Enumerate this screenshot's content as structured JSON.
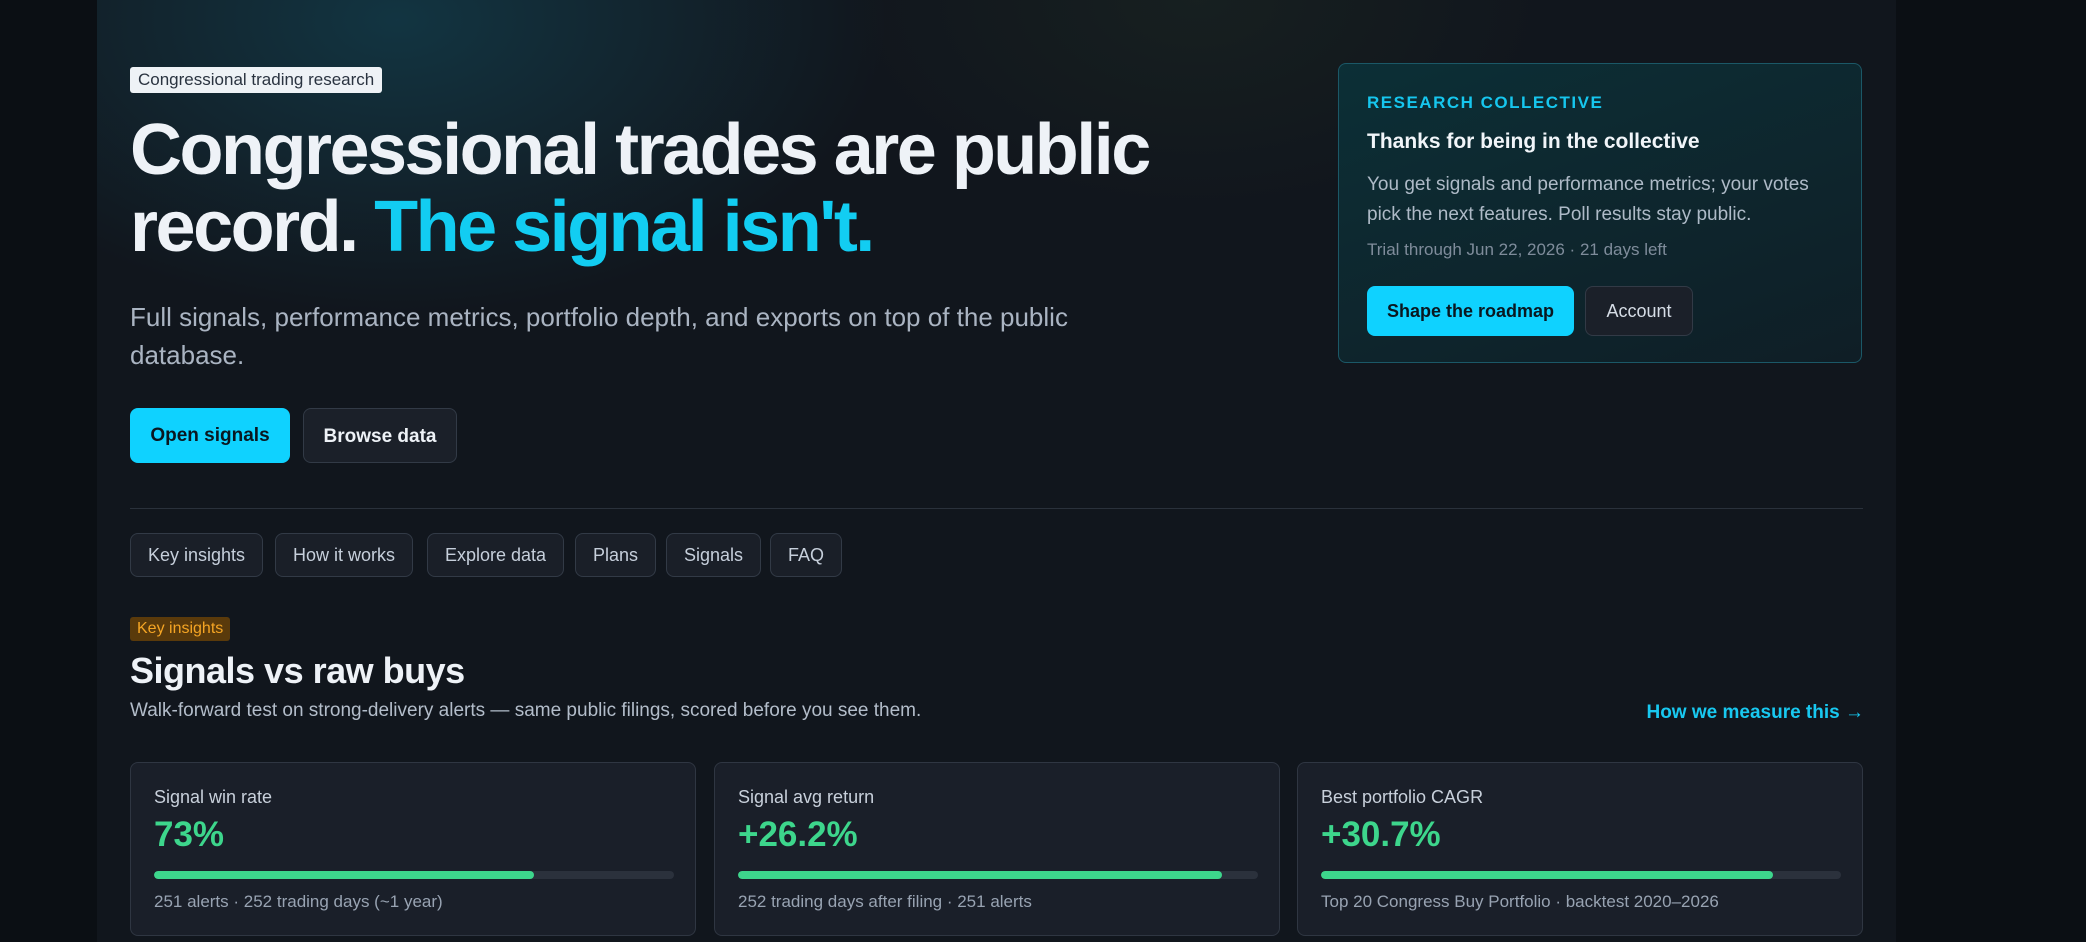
{
  "hero": {
    "badge": "Congressional trading research",
    "title": "Congressional trades are public record.",
    "title_accent": "The signal isn't.",
    "subtitle": "Full signals, performance metrics, portfolio depth, and exports on top of the public database.",
    "buttons": [
      "Open signals",
      "Browse data"
    ]
  },
  "nav": [
    "Key insights",
    "How it works",
    "Explore data",
    "Plans",
    "Signals",
    "FAQ"
  ],
  "panel": {
    "kicker": "RESEARCH COLLECTIVE",
    "title": "Thanks for being in the collective",
    "body": "You get signals and performance metrics; your votes pick the next features. Poll results stay public.",
    "trial": "Trial through Jun 22, 2026 · 21 days left",
    "buttons": [
      "Shape the roadmap",
      "Account"
    ]
  },
  "insights": {
    "badge": "Key insights",
    "title": "Signals vs raw buys",
    "description": "Walk-forward test on strong-delivery alerts — same public filings, scored before you see them.",
    "link": "How we measure this →",
    "cards": [
      {
        "label": "Signal win rate",
        "value": "73%",
        "meter": 73,
        "note": "251 alerts · 252 trading days (~1 year)"
      },
      {
        "label": "Signal avg return",
        "value": "+26.2%",
        "meter": 93,
        "note": "252 trading days after filing · 251 alerts"
      },
      {
        "label": "Best portfolio CAGR",
        "value": "+30.7%",
        "meter": 87,
        "note": "Top 20 Congress Buy Portfolio · backtest 2020–2026"
      }
    ]
  }
}
